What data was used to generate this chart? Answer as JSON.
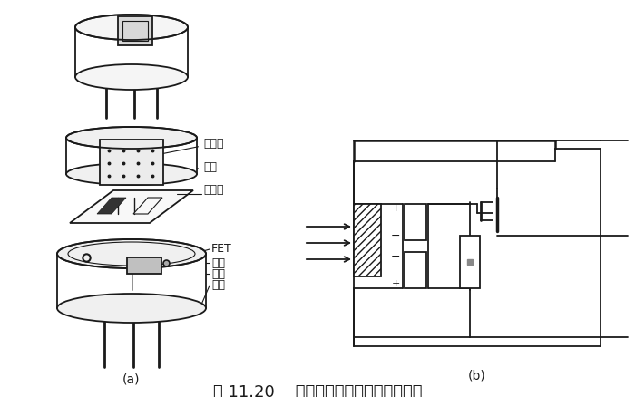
{
  "title": "图 11.20    热释电人体红外传感器的结构",
  "label_a": "(a)",
  "label_b": "(b)",
  "labels": {
    "filter": "滤光片",
    "cap": "管帽",
    "element": "敏感元",
    "fet": "FET",
    "socket": "管座",
    "resistor": "高阻",
    "lead": "引线"
  },
  "bg_color": "#ffffff",
  "line_color": "#1a1a1a",
  "font_size_title": 13,
  "font_size_label": 9,
  "font_size_ab": 10
}
